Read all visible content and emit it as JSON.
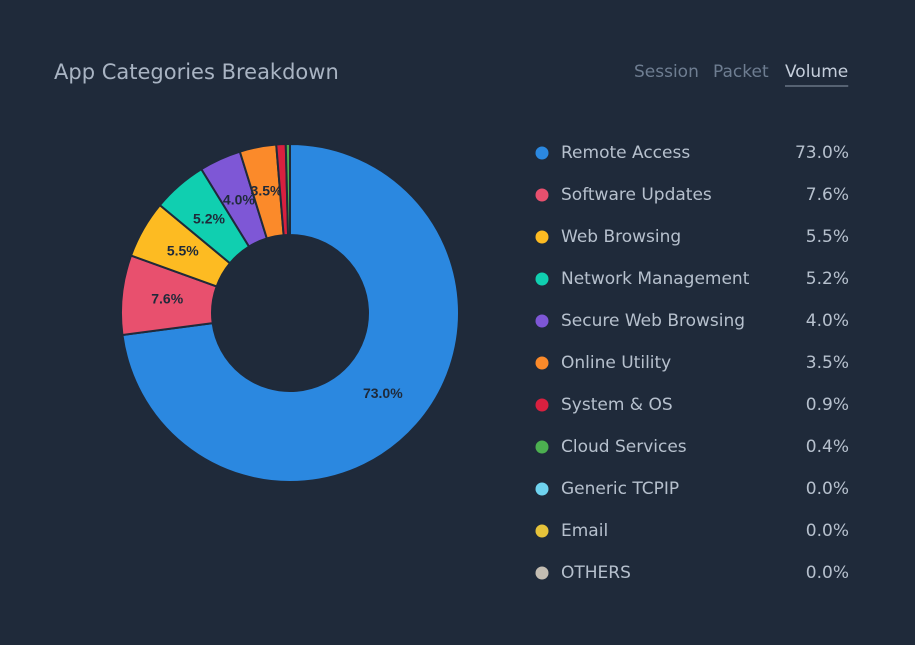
{
  "tabs": [
    "Session",
    "Packet",
    "Volume"
  ],
  "active_tab": 2,
  "chart_data": {
    "type": "pie",
    "title": "App Categories Breakdown",
    "categories": [
      "Remote Access",
      "Software Updates",
      "Web Browsing",
      "Network Management",
      "Secure Web Browsing",
      "Online Utility",
      "System & OS",
      "Cloud Services",
      "Generic TCPIP",
      "Email",
      "OTHERS"
    ],
    "values": [
      73.0,
      7.6,
      5.5,
      5.2,
      4.0,
      3.5,
      0.9,
      0.4,
      0,
      0,
      0
    ],
    "value_labels": [
      "73.0%",
      "7.6%",
      "5.5%",
      "5.2%",
      "4.0%",
      "3.5%",
      "0.9%",
      "0.4%",
      "0.0%",
      "0.0%",
      "0.0%"
    ],
    "colors": [
      "#2b88e0",
      "#e8506e",
      "#fdbb22",
      "#10cfb0",
      "#7e57d6",
      "#fb8a2a",
      "#d8203f",
      "#4caf50",
      "#6fd3ef",
      "#e6c33a",
      "#c3bdb2"
    ]
  }
}
